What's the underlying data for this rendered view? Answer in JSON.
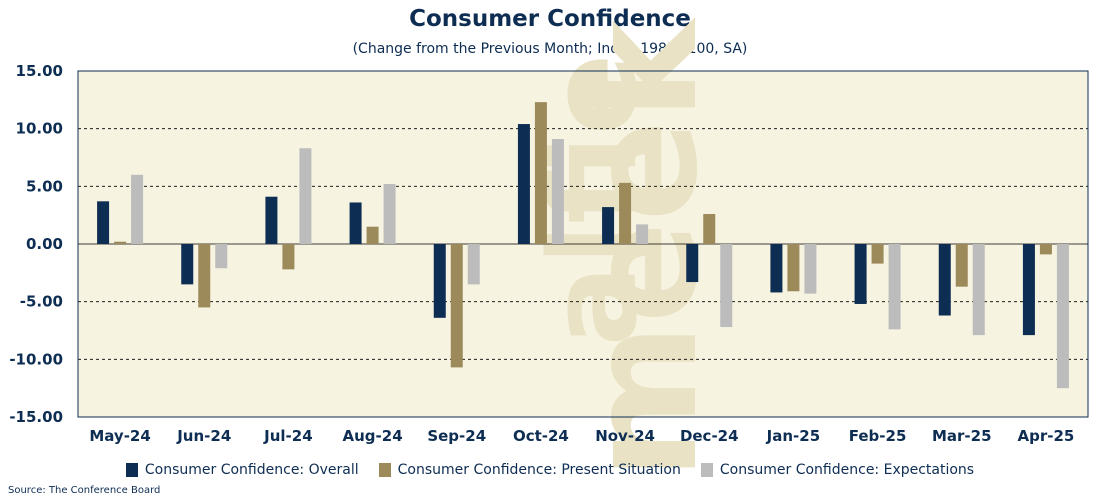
{
  "chart_data": {
    "type": "bar",
    "title": "Consumer Confidence",
    "subtitle": "(Change from the Previous Month; Index 1985=100, SA)",
    "categories": [
      "May-24",
      "Jun-24",
      "Jul-24",
      "Aug-24",
      "Sep-24",
      "Oct-24",
      "Nov-24",
      "Dec-24",
      "Jan-25",
      "Feb-25",
      "Mar-25",
      "Apr-25"
    ],
    "series": [
      {
        "name": "Consumer Confidence: Overall",
        "color": "#0d2d52",
        "values": [
          3.7,
          -3.5,
          4.1,
          3.6,
          -6.4,
          10.4,
          3.2,
          -3.3,
          -4.2,
          -5.2,
          -6.2,
          -7.9
        ]
      },
      {
        "name": "Consumer Confidence: Present Situation",
        "color": "#9c8a5a",
        "values": [
          0.2,
          -5.5,
          -2.2,
          1.5,
          -10.7,
          12.3,
          5.3,
          2.6,
          -4.1,
          -1.7,
          -3.7,
          -0.9
        ]
      },
      {
        "name": "Consumer Confidence: Expectations",
        "color": "#bcbcbc",
        "values": [
          6.0,
          -2.1,
          8.3,
          5.2,
          -3.5,
          9.1,
          1.7,
          -7.2,
          -4.3,
          -7.4,
          -7.9,
          -12.5
        ]
      }
    ],
    "y_ticks": [
      "15.00",
      "10.00",
      "5.00",
      "0.00",
      "-5.00",
      "-10.00",
      "-15.00"
    ],
    "ylim": [
      -15,
      15
    ],
    "grid": "horizontal dashed",
    "legend_position": "bottom-center",
    "source": "Source: The Conference Board",
    "watermark": "alfie meek",
    "plot_background": "#f6f3e1"
  }
}
